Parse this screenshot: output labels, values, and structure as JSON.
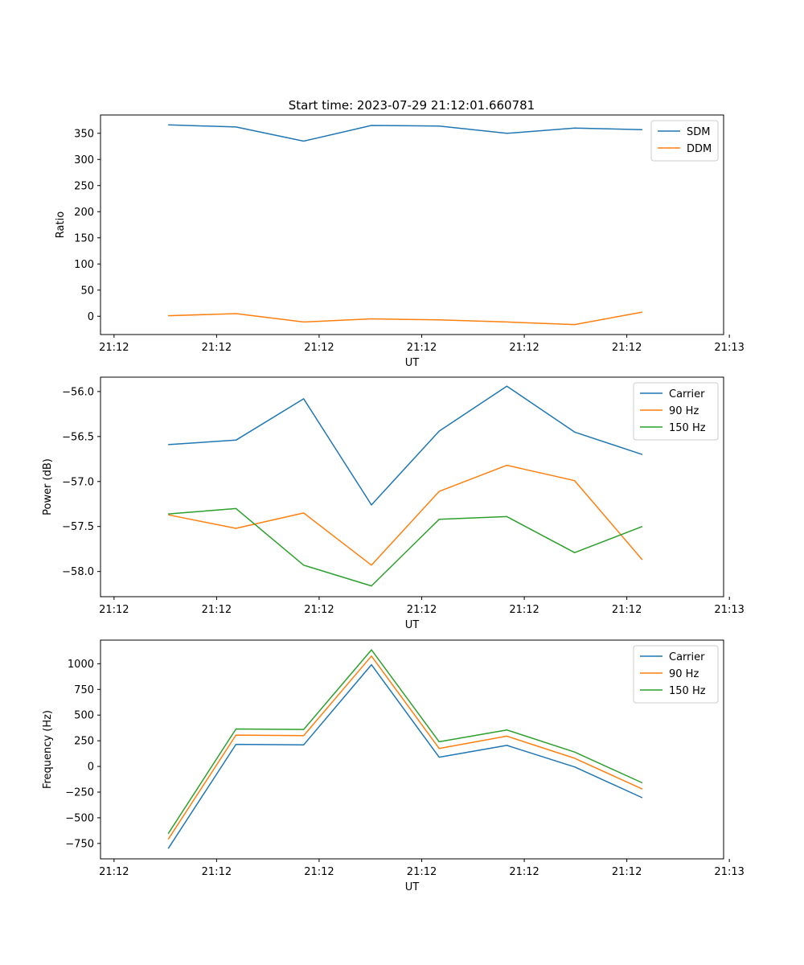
{
  "figure_title": "Start time: 2023-07-29 21:12:01.660781",
  "chart_data": [
    {
      "type": "line",
      "title": "Start time: 2023-07-29 21:12:01.660781",
      "xlabel": "UT",
      "ylabel": "Ratio",
      "x_tick_labels": [
        "21:12",
        "21:12",
        "21:12",
        "21:12",
        "21:12",
        "21:12",
        "21:13"
      ],
      "x_points": [
        1,
        2,
        3,
        4,
        5,
        6,
        7,
        8
      ],
      "xlim": [
        0,
        9.2
      ],
      "x_tick_positions": [
        0.2,
        1.714,
        3.228,
        4.743,
        6.257,
        7.771,
        9.285
      ],
      "ylim": [
        -35,
        385
      ],
      "y_ticks": [
        0,
        50,
        100,
        150,
        200,
        250,
        300,
        350
      ],
      "y_tick_labels": [
        "0",
        "50",
        "100",
        "150",
        "200",
        "250",
        "300",
        "350"
      ],
      "legend_position": "upper-right",
      "series": [
        {
          "name": "SDM",
          "color": "#1f77b4",
          "values": [
            366,
            362,
            335,
            365,
            364,
            350,
            360,
            357
          ]
        },
        {
          "name": "DDM",
          "color": "#ff7f0e",
          "values": [
            1,
            5,
            -11,
            -5,
            -7,
            -11,
            -16,
            8
          ]
        }
      ]
    },
    {
      "type": "line",
      "title": "",
      "xlabel": "UT",
      "ylabel": "Power (dB)",
      "x_tick_labels": [
        "21:12",
        "21:12",
        "21:12",
        "21:12",
        "21:12",
        "21:12",
        "21:13"
      ],
      "x_points": [
        1,
        2,
        3,
        4,
        5,
        6,
        7,
        8
      ],
      "xlim": [
        0,
        9.2
      ],
      "x_tick_positions": [
        0.2,
        1.714,
        3.228,
        4.743,
        6.257,
        7.771,
        9.285
      ],
      "ylim": [
        -58.28,
        -55.84
      ],
      "y_ticks": [
        -58.0,
        -57.5,
        -57.0,
        -56.5,
        -56.0
      ],
      "y_tick_labels": [
        "−58.0",
        "−57.5",
        "−57.0",
        "−56.5",
        "−56.0"
      ],
      "legend_position": "upper-right",
      "series": [
        {
          "name": "Carrier",
          "color": "#1f77b4",
          "values": [
            -56.59,
            -56.54,
            -56.08,
            -57.26,
            -56.44,
            -55.94,
            -56.45,
            -56.7
          ]
        },
        {
          "name": "90 Hz",
          "color": "#ff7f0e",
          "values": [
            -57.37,
            -57.52,
            -57.35,
            -57.93,
            -57.11,
            -56.82,
            -56.99,
            -57.87
          ]
        },
        {
          "name": "150 Hz",
          "color": "#2ca02c",
          "values": [
            -57.36,
            -57.3,
            -57.93,
            -58.16,
            -57.42,
            -57.39,
            -57.79,
            -57.5
          ]
        }
      ]
    },
    {
      "type": "line",
      "title": "",
      "xlabel": "UT",
      "ylabel": "Frequency (Hz)",
      "x_tick_labels": [
        "21:12",
        "21:12",
        "21:12",
        "21:12",
        "21:12",
        "21:12",
        "21:13"
      ],
      "x_points": [
        1,
        2,
        3,
        4,
        5,
        6,
        7,
        8
      ],
      "xlim": [
        0,
        9.2
      ],
      "x_tick_positions": [
        0.2,
        1.714,
        3.228,
        4.743,
        6.257,
        7.771,
        9.285
      ],
      "ylim": [
        -900,
        1230
      ],
      "y_ticks": [
        -750,
        -500,
        -250,
        0,
        250,
        500,
        750,
        1000
      ],
      "y_tick_labels": [
        "−750",
        "−500",
        "−250",
        "0",
        "250",
        "500",
        "750",
        "1000"
      ],
      "legend_position": "upper-right",
      "series": [
        {
          "name": "Carrier",
          "color": "#1f77b4",
          "values": [
            -800,
            215,
            210,
            990,
            90,
            205,
            -5,
            -305
          ]
        },
        {
          "name": "90 Hz",
          "color": "#ff7f0e",
          "values": [
            -710,
            305,
            300,
            1075,
            175,
            295,
            80,
            -220
          ]
        },
        {
          "name": "150 Hz",
          "color": "#2ca02c",
          "values": [
            -655,
            365,
            360,
            1135,
            240,
            355,
            140,
            -160
          ]
        }
      ]
    }
  ]
}
